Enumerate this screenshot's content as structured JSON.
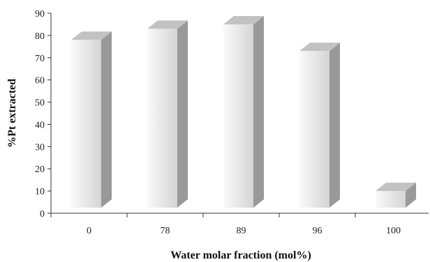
{
  "chart_data": {
    "type": "bar",
    "style": "3d",
    "title": "",
    "xlabel": "Water molar fraction (mol%)",
    "ylabel": "%Pt extracted",
    "categories": [
      "0",
      "78",
      "89",
      "96",
      "100"
    ],
    "values": [
      78,
      83,
      85,
      73,
      10
    ],
    "ylim": [
      0,
      90
    ],
    "yticks": [
      0,
      10,
      20,
      30,
      40,
      50,
      60,
      70,
      80,
      90
    ],
    "grid": false,
    "legend": "none",
    "colors": {
      "bar_front_light": "#fafafa",
      "bar_front_dark": "#d4d4d4",
      "bar_side": "#999999",
      "bar_top": "#c2c2c2",
      "axis": "#333333"
    }
  }
}
